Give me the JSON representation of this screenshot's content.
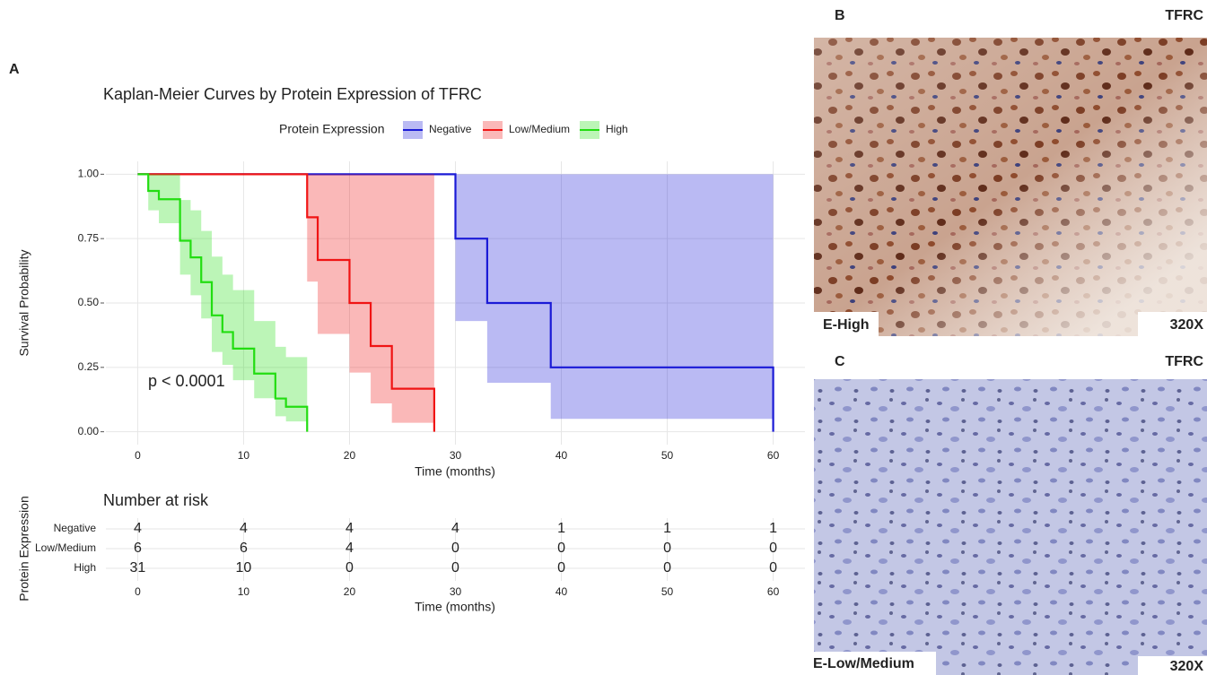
{
  "chart_data": [
    {
      "type": "step",
      "panel": "A",
      "title": "Kaplan-Meier Curves by Protein Expression of TFRC",
      "legend_title": "Protein Expression",
      "xlabel": "Time (months)",
      "ylabel": "Survival Probability",
      "annotation": "p < 0.0001",
      "xlim": [
        -3,
        63
      ],
      "xticks": [
        0,
        10,
        20,
        30,
        40,
        50,
        60
      ],
      "ylim": [
        -0.05,
        1.05
      ],
      "yticks": [
        {
          "value": 0,
          "label": "0.00"
        },
        {
          "value": 0.25,
          "label": "0.25"
        },
        {
          "value": 0.5,
          "label": "0.50"
        },
        {
          "value": 0.75,
          "label": "0.75"
        },
        {
          "value": 1,
          "label": "1.00"
        }
      ],
      "grid": true,
      "legend": "top",
      "series": [
        {
          "name": "Negative",
          "color": "#1a1ad6",
          "x": [
            0,
            30,
            33,
            39,
            60
          ],
          "values": [
            1,
            0.75,
            0.5,
            0.25,
            0
          ],
          "lower": [
            null,
            0.43,
            0.19,
            0.05,
            null
          ],
          "upper": [
            null,
            1,
            1,
            1,
            null
          ]
        },
        {
          "name": "Low/Medium",
          "color": "#f01414",
          "x": [
            0,
            16,
            17,
            20,
            22,
            24,
            28
          ],
          "values": [
            1,
            0.833,
            0.667,
            0.5,
            0.333,
            0.167,
            0
          ],
          "lower": [
            null,
            0.583,
            0.38,
            0.23,
            0.11,
            0.035,
            null
          ],
          "upper": [
            null,
            1,
            1,
            1,
            1,
            1,
            null
          ]
        },
        {
          "name": "High",
          "color": "#22dd11",
          "x": [
            0,
            1,
            2,
            4,
            5,
            6,
            7,
            8,
            9,
            11,
            13,
            14,
            16
          ],
          "values": [
            1,
            0.935,
            0.903,
            0.742,
            0.677,
            0.581,
            0.452,
            0.387,
            0.323,
            0.226,
            0.129,
            0.097,
            0
          ],
          "lower": [
            null,
            0.86,
            0.81,
            0.61,
            0.53,
            0.44,
            0.31,
            0.26,
            0.2,
            0.13,
            0.06,
            0.04,
            null
          ],
          "upper": [
            null,
            1,
            1,
            0.9,
            0.86,
            0.78,
            0.68,
            0.61,
            0.55,
            0.43,
            0.33,
            0.29,
            null
          ]
        }
      ]
    },
    {
      "type": "risk_table",
      "title": "Number at risk",
      "xlabel": "Time (months)",
      "ylabel": "Protein Expression",
      "xlim": [
        -3,
        63
      ],
      "categories": [
        0,
        10,
        20,
        30,
        40,
        50,
        60
      ],
      "series": [
        {
          "name": "Negative",
          "color": "#1a1ad6",
          "values": [
            4,
            4,
            4,
            4,
            1,
            1,
            1
          ]
        },
        {
          "name": "Low/Medium",
          "color": "#f01414",
          "values": [
            6,
            6,
            4,
            0,
            0,
            0,
            0
          ]
        },
        {
          "name": "High",
          "color": "#22dd11",
          "values": [
            31,
            10,
            0,
            0,
            0,
            0,
            0
          ]
        }
      ]
    }
  ],
  "panels": [
    {
      "label": "B",
      "marker": "TFRC",
      "caption": "E-High",
      "magnification": "320X"
    },
    {
      "label": "C",
      "marker": "TFRC",
      "caption": "E-Low/Medium",
      "magnification": "320X"
    }
  ]
}
